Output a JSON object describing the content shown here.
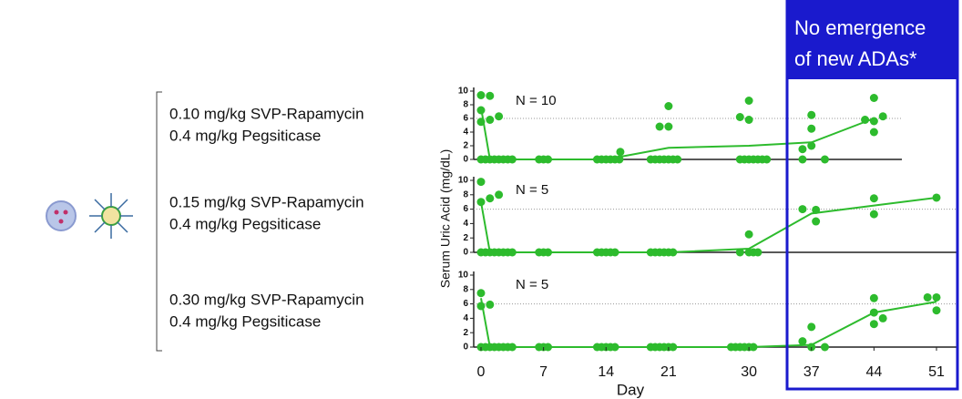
{
  "chart_data": [
    {
      "type": "scatter",
      "annotation": "N = 10",
      "ylim": [
        0,
        10
      ],
      "yticks": [
        0,
        2,
        4,
        6,
        8,
        10
      ],
      "hline": 6,
      "series": [
        {
          "type": "scatter",
          "color": "#2dbb2d",
          "x": [
            0,
            0,
            0,
            1,
            1,
            2,
            0,
            0.5,
            1,
            1.5,
            2,
            2.5,
            3,
            3.5,
            6.5,
            7,
            7.5,
            13,
            13.5,
            14,
            14.5,
            15,
            15.5,
            15.6,
            19,
            19.5,
            20,
            20.5,
            21,
            21.5,
            22,
            20,
            21,
            21,
            29,
            29.5,
            30,
            30.5,
            31,
            31.5,
            32,
            29,
            30,
            30,
            36,
            37,
            37,
            37,
            36,
            38.5,
            43,
            44,
            44,
            44,
            45
          ],
          "y": [
            9.4,
            7.2,
            5.5,
            9.3,
            5.8,
            6.3,
            0,
            0,
            0,
            0,
            0,
            0,
            0,
            0,
            0,
            0,
            0,
            0,
            0,
            0,
            0,
            0,
            0,
            1.1,
            0,
            0,
            0,
            0,
            0,
            0,
            0,
            4.8,
            4.8,
            7.8,
            0,
            0,
            0,
            0,
            0,
            0,
            0,
            6.2,
            8.6,
            5.8,
            1.5,
            6.5,
            4.5,
            2.0,
            0,
            0,
            5.8,
            9.0,
            5.6,
            4.0,
            6.3
          ]
        },
        {
          "type": "line",
          "color": "#2dbb2d",
          "x": [
            0,
            1,
            7,
            14,
            21,
            30,
            37,
            44
          ],
          "y": [
            7.6,
            0,
            0,
            0,
            1.7,
            2.0,
            2.5,
            6.0
          ]
        }
      ]
    },
    {
      "type": "scatter",
      "annotation": "N = 5",
      "ylim": [
        0,
        10
      ],
      "yticks": [
        0,
        2,
        4,
        6,
        8,
        10
      ],
      "hline": 6,
      "series": [
        {
          "type": "scatter",
          "color": "#2dbb2d",
          "x": [
            0,
            0,
            1,
            2,
            0,
            0.5,
            1,
            1.5,
            2,
            2.5,
            3,
            3.5,
            6.5,
            7,
            7.5,
            13,
            13.5,
            14,
            14.5,
            15,
            19,
            19.5,
            20,
            20.5,
            21,
            21.5,
            29,
            30,
            30.5,
            31,
            30,
            36,
            37.5,
            37.5,
            44,
            44,
            51
          ],
          "y": [
            9.8,
            7.0,
            7.5,
            8.0,
            0,
            0,
            0,
            0,
            0,
            0,
            0,
            0,
            0,
            0,
            0,
            0,
            0,
            0,
            0,
            0,
            0,
            0,
            0,
            0,
            0,
            0,
            0,
            0,
            0,
            0,
            2.5,
            6.0,
            5.9,
            4.3,
            7.5,
            5.3,
            7.6
          ]
        },
        {
          "type": "line",
          "color": "#2dbb2d",
          "x": [
            0,
            1,
            7,
            14,
            21,
            30,
            37,
            44,
            51
          ],
          "y": [
            7.0,
            0,
            0,
            0,
            0,
            0.5,
            5.4,
            6.5,
            7.6
          ]
        }
      ]
    },
    {
      "type": "scatter",
      "annotation": "N = 5",
      "ylim": [
        0,
        10
      ],
      "yticks": [
        0,
        2,
        4,
        6,
        8,
        10
      ],
      "hline": 6,
      "xlim": [
        0,
        51
      ],
      "xticks": [
        0,
        7,
        14,
        21,
        30,
        37,
        44,
        51
      ],
      "xlabel": "Day",
      "series": [
        {
          "type": "scatter",
          "color": "#2dbb2d",
          "x": [
            0,
            0,
            1,
            0,
            0.5,
            1,
            1.5,
            2,
            2.5,
            3,
            3.5,
            6.5,
            7,
            7.5,
            13,
            13.5,
            14,
            14.5,
            15,
            19,
            19.5,
            20,
            20.5,
            21,
            21.5,
            28,
            28.5,
            29,
            29.5,
            30,
            30.5,
            36,
            37,
            37,
            38.5,
            44,
            44,
            44,
            45,
            50,
            51,
            51
          ],
          "y": [
            7.5,
            5.7,
            5.9,
            0,
            0,
            0,
            0,
            0,
            0,
            0,
            0,
            0,
            0,
            0,
            0,
            0,
            0,
            0,
            0,
            0,
            0,
            0,
            0,
            0,
            0,
            0,
            0,
            0,
            0,
            0,
            0,
            0.8,
            2.8,
            0,
            0,
            6.8,
            4.8,
            3.2,
            4.0,
            6.9,
            6.9,
            5.1
          ]
        },
        {
          "type": "line",
          "color": "#2dbb2d",
          "x": [
            0,
            1,
            7,
            14,
            21,
            30,
            37,
            44,
            51
          ],
          "y": [
            6.8,
            0,
            0,
            0,
            0,
            0,
            0.3,
            4.8,
            6.3
          ]
        }
      ]
    }
  ],
  "ylabel": "Serum Uric Acid (mg/dL)",
  "treatments": [
    {
      "drug": "0.10 mg/kg SVP-Rapamycin",
      "enzyme": "0.4 mg/kg Pegsiticase"
    },
    {
      "drug": "0.15 mg/kg SVP-Rapamycin",
      "enzyme": "0.4 mg/kg Pegsiticase"
    },
    {
      "drug": "0.30 mg/kg SVP-Rapamycin",
      "enzyme": "0.4 mg/kg Pegsiticase"
    }
  ],
  "callout": [
    "No emergence",
    "of new ADAs*"
  ]
}
